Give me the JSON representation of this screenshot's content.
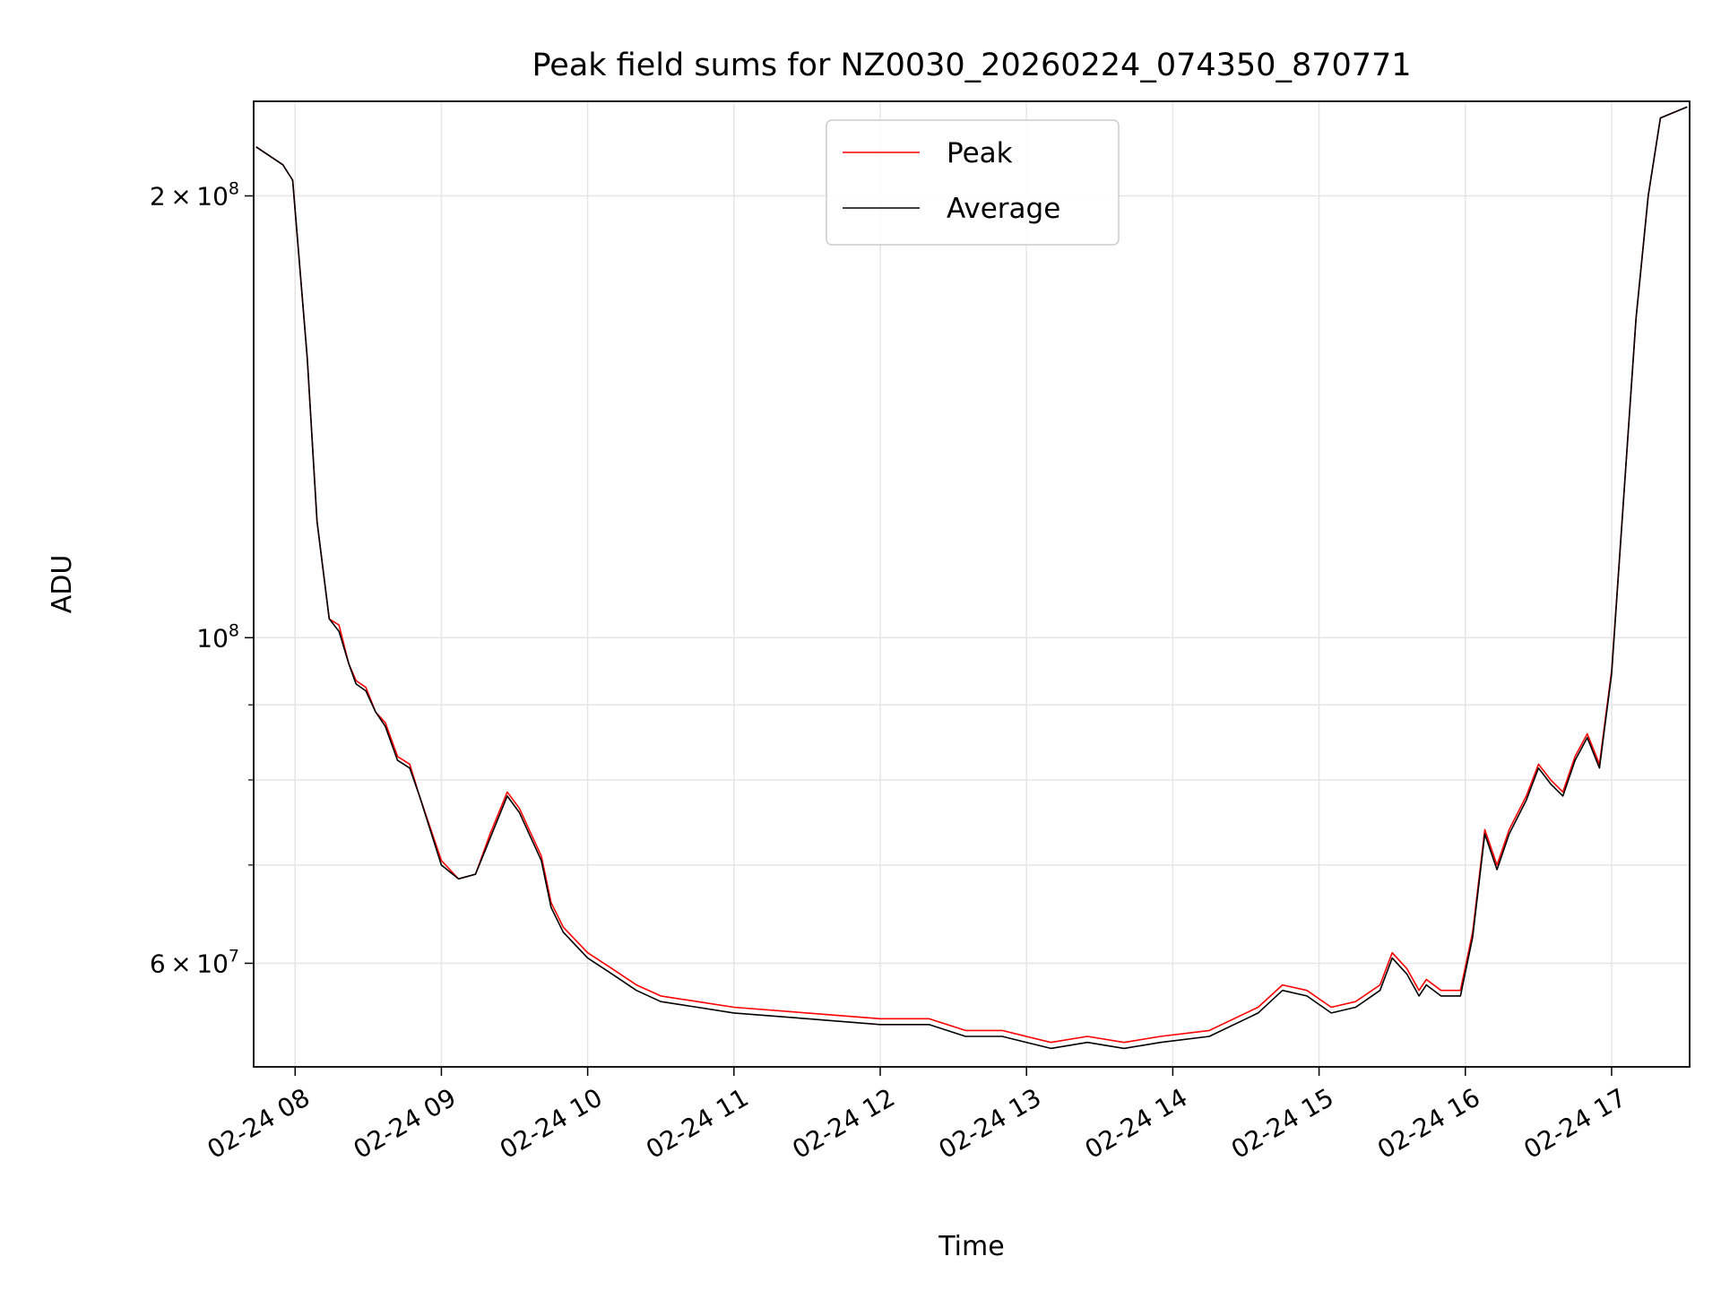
{
  "chart_data": {
    "type": "line",
    "title": "Peak field sums for NZ0030_20260224_074350_870771",
    "xlabel": "Time",
    "ylabel": "ADU",
    "y_scale": "log",
    "grid": true,
    "legend_position": "top-center",
    "xlim": [
      "2026-02-24 07:43",
      "2026-02-24 17:32"
    ],
    "ylim": [
      51000000,
      232000000
    ],
    "x_ticks": [
      "2026-02-24 08:00",
      "2026-02-24 09:00",
      "2026-02-24 10:00",
      "2026-02-24 11:00",
      "2026-02-24 12:00",
      "2026-02-24 13:00",
      "2026-02-24 14:00",
      "2026-02-24 15:00",
      "2026-02-24 16:00",
      "2026-02-24 17:00"
    ],
    "x_tick_labels": [
      "02-24 08",
      "02-24 09",
      "02-24 10",
      "02-24 11",
      "02-24 12",
      "02-24 13",
      "02-24 14",
      "02-24 15",
      "02-24 16",
      "02-24 17"
    ],
    "y_tick_labels": [
      {
        "value": 200000000,
        "mantissa": "2",
        "exponent": "8"
      },
      {
        "value": 100000000,
        "mantissa": "",
        "exponent": "8"
      },
      {
        "value": 60000000,
        "mantissa": "6",
        "exponent": "7"
      }
    ],
    "y_minor_ticks": [
      70000000,
      80000000,
      90000000
    ],
    "series": [
      {
        "name": "Peak",
        "color": "#ff0000",
        "x": [
          "2026-02-24 07:44",
          "2026-02-24 07:55",
          "2026-02-24 07:59",
          "2026-02-24 08:05",
          "2026-02-24 08:09",
          "2026-02-24 08:14",
          "2026-02-24 08:18",
          "2026-02-24 08:22",
          "2026-02-24 08:25",
          "2026-02-24 08:29",
          "2026-02-24 08:33",
          "2026-02-24 08:37",
          "2026-02-24 08:42",
          "2026-02-24 08:47",
          "2026-02-24 08:51",
          "2026-02-24 09:00",
          "2026-02-24 09:07",
          "2026-02-24 09:14",
          "2026-02-24 09:20",
          "2026-02-24 09:27",
          "2026-02-24 09:32",
          "2026-02-24 09:36",
          "2026-02-24 09:41",
          "2026-02-24 09:45",
          "2026-02-24 09:50",
          "2026-02-24 10:00",
          "2026-02-24 10:10",
          "2026-02-24 10:20",
          "2026-02-24 10:30",
          "2026-02-24 10:45",
          "2026-02-24 11:00",
          "2026-02-24 11:30",
          "2026-02-24 12:00",
          "2026-02-24 12:20",
          "2026-02-24 12:35",
          "2026-02-24 12:50",
          "2026-02-24 13:10",
          "2026-02-24 13:25",
          "2026-02-24 13:40",
          "2026-02-24 13:55",
          "2026-02-24 14:15",
          "2026-02-24 14:35",
          "2026-02-24 14:45",
          "2026-02-24 14:55",
          "2026-02-24 15:05",
          "2026-02-24 15:15",
          "2026-02-24 15:25",
          "2026-02-24 15:30",
          "2026-02-24 15:36",
          "2026-02-24 15:41",
          "2026-02-24 15:44",
          "2026-02-24 15:50",
          "2026-02-24 15:58",
          "2026-02-24 16:03",
          "2026-02-24 16:08",
          "2026-02-24 16:13",
          "2026-02-24 16:18",
          "2026-02-24 16:25",
          "2026-02-24 16:30",
          "2026-02-24 16:35",
          "2026-02-24 16:40",
          "2026-02-24 16:45",
          "2026-02-24 16:50",
          "2026-02-24 16:55",
          "2026-02-24 17:00",
          "2026-02-24 17:05",
          "2026-02-24 17:10",
          "2026-02-24 17:15",
          "2026-02-24 17:20",
          "2026-02-24 17:31"
        ],
        "values": [
          216000000,
          210000000,
          205000000,
          155000000,
          120000000,
          103000000,
          102000000,
          96000000,
          93500000,
          92500000,
          89000000,
          87500000,
          83000000,
          82000000,
          78000000,
          70500000,
          68500000,
          69000000,
          73500000,
          78500000,
          76500000,
          74000000,
          71000000,
          66000000,
          63500000,
          61000000,
          59500000,
          58000000,
          57000000,
          56500000,
          56000000,
          55500000,
          55000000,
          55000000,
          54000000,
          54000000,
          53000000,
          53500000,
          53000000,
          53500000,
          54000000,
          56000000,
          58000000,
          57500000,
          56000000,
          56500000,
          58000000,
          61000000,
          59500000,
          57500000,
          58500000,
          57500000,
          57500000,
          63000000,
          74000000,
          70000000,
          74000000,
          78000000,
          82000000,
          80000000,
          78500000,
          83000000,
          86000000,
          82000000,
          95000000,
          125000000,
          165000000,
          200000000,
          226000000,
          230000000
        ]
      },
      {
        "name": "Average",
        "color": "#000000",
        "x": [
          "2026-02-24 07:44",
          "2026-02-24 07:55",
          "2026-02-24 07:59",
          "2026-02-24 08:05",
          "2026-02-24 08:09",
          "2026-02-24 08:14",
          "2026-02-24 08:18",
          "2026-02-24 08:22",
          "2026-02-24 08:25",
          "2026-02-24 08:29",
          "2026-02-24 08:33",
          "2026-02-24 08:37",
          "2026-02-24 08:42",
          "2026-02-24 08:47",
          "2026-02-24 08:51",
          "2026-02-24 09:00",
          "2026-02-24 09:07",
          "2026-02-24 09:14",
          "2026-02-24 09:20",
          "2026-02-24 09:27",
          "2026-02-24 09:32",
          "2026-02-24 09:36",
          "2026-02-24 09:41",
          "2026-02-24 09:45",
          "2026-02-24 09:50",
          "2026-02-24 10:00",
          "2026-02-24 10:10",
          "2026-02-24 10:20",
          "2026-02-24 10:30",
          "2026-02-24 10:45",
          "2026-02-24 11:00",
          "2026-02-24 11:30",
          "2026-02-24 12:00",
          "2026-02-24 12:20",
          "2026-02-24 12:35",
          "2026-02-24 12:50",
          "2026-02-24 13:10",
          "2026-02-24 13:25",
          "2026-02-24 13:40",
          "2026-02-24 13:55",
          "2026-02-24 14:15",
          "2026-02-24 14:35",
          "2026-02-24 14:45",
          "2026-02-24 14:55",
          "2026-02-24 15:05",
          "2026-02-24 15:15",
          "2026-02-24 15:25",
          "2026-02-24 15:30",
          "2026-02-24 15:36",
          "2026-02-24 15:41",
          "2026-02-24 15:44",
          "2026-02-24 15:50",
          "2026-02-24 15:58",
          "2026-02-24 16:03",
          "2026-02-24 16:08",
          "2026-02-24 16:13",
          "2026-02-24 16:18",
          "2026-02-24 16:25",
          "2026-02-24 16:30",
          "2026-02-24 16:35",
          "2026-02-24 16:40",
          "2026-02-24 16:45",
          "2026-02-24 16:50",
          "2026-02-24 16:55",
          "2026-02-24 17:00",
          "2026-02-24 17:05",
          "2026-02-24 17:10",
          "2026-02-24 17:15",
          "2026-02-24 17:20",
          "2026-02-24 17:31"
        ],
        "values": [
          216000000,
          210000000,
          205000000,
          155000000,
          120000000,
          103000000,
          101000000,
          96000000,
          93000000,
          92000000,
          89000000,
          87000000,
          82500000,
          81500000,
          78000000,
          70000000,
          68500000,
          69000000,
          73000000,
          78000000,
          76000000,
          73500000,
          70500000,
          65500000,
          63000000,
          60500000,
          59000000,
          57500000,
          56500000,
          56000000,
          55500000,
          55000000,
          54500000,
          54500000,
          53500000,
          53500000,
          52500000,
          53000000,
          52500000,
          53000000,
          53500000,
          55500000,
          57500000,
          57000000,
          55500000,
          56000000,
          57500000,
          60500000,
          59000000,
          57000000,
          58000000,
          57000000,
          57000000,
          62500000,
          73500000,
          69500000,
          73500000,
          77500000,
          81500000,
          79500000,
          78000000,
          82500000,
          85500000,
          81500000,
          94500000,
          125000000,
          165000000,
          200000000,
          226000000,
          230000000
        ]
      }
    ]
  }
}
